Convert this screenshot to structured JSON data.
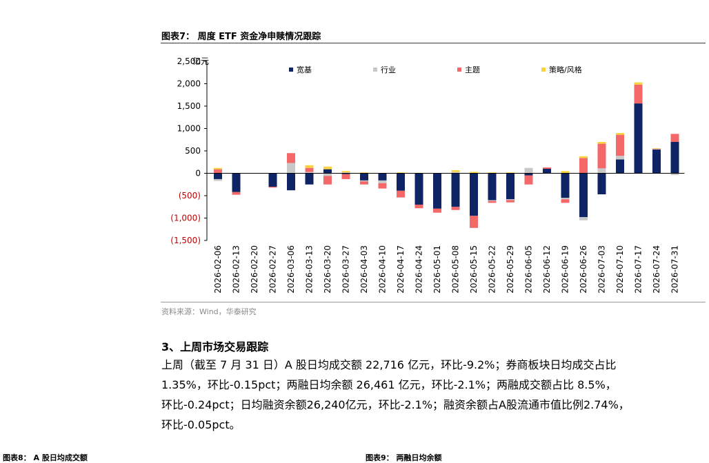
{
  "header": {
    "figure_title": "图表7：  周度 ETF 资金净申赎情况跟踪"
  },
  "source": "资料来源：Wind，华泰研究",
  "section": {
    "title": "3、上周市场交易跟踪",
    "lines": [
      "上周（截至 7 月 31 日）A 股日均成交额 22,716 亿元，环比-9.2%；券商板块日均成交占比",
      "1.35%，环比-0.15pct；两融日均余额 26,461 亿元，环比-2.1%；两融成交额占比 8.5%，",
      "环比-0.24pct；日均融资余额26,240亿元，环比-2.1%；融资余额占A股流通市值比例2.74%，",
      "环比-0.05pct。"
    ]
  },
  "footer": {
    "left": "图表8：  A 股日均成交额",
    "right": "图表9：  两融日均余额"
  },
  "chart_data": {
    "type": "bar",
    "stacked": true,
    "y_unit_label": "亿元",
    "ylim": [
      -1500,
      2500
    ],
    "yticks": [
      2500,
      2000,
      1500,
      1000,
      500,
      0,
      -500,
      -1000,
      -1500
    ],
    "ytick_labels": [
      "2,500",
      "2,000",
      "1,500",
      "1,000",
      "500",
      "0",
      "(500)",
      "(1,000)",
      "(1,500)"
    ],
    "grid": false,
    "legend_position": "top",
    "categories": [
      "2026-02-06",
      "2026-02-13",
      "2026-02-20",
      "2026-02-27",
      "2026-03-06",
      "2026-03-13",
      "2026-03-20",
      "2026-03-27",
      "2026-04-03",
      "2026-04-10",
      "2026-04-17",
      "2026-04-24",
      "2026-05-01",
      "2026-05-08",
      "2026-05-15",
      "2026-05-22",
      "2026-05-29",
      "2026-06-05",
      "2026-06-12",
      "2026-06-19",
      "2026-06-26",
      "2026-07-03",
      "2026-07-10",
      "2026-07-17",
      "2026-07-24",
      "2026-07-31"
    ],
    "series": [
      {
        "name": "宽基",
        "color": "#0e2465",
        "values": [
          -130,
          -420,
          0,
          -300,
          -380,
          -250,
          90,
          -20,
          -160,
          -160,
          -390,
          -700,
          -790,
          -750,
          -950,
          -600,
          -580,
          -50,
          100,
          -550,
          -980,
          -470,
          310,
          1560,
          530,
          700
        ]
      },
      {
        "name": "行业",
        "color": "#c8c8c8",
        "values": [
          -40,
          0,
          0,
          0,
          230,
          30,
          -60,
          20,
          -20,
          -60,
          0,
          0,
          0,
          30,
          0,
          -20,
          -20,
          120,
          0,
          -30,
          -70,
          110,
          80,
          0,
          10,
          -40
        ]
      },
      {
        "name": "主题",
        "color": "#f4686a",
        "values": [
          90,
          -60,
          0,
          -20,
          220,
          90,
          -190,
          -110,
          -70,
          -120,
          -150,
          -80,
          -90,
          -70,
          -270,
          -40,
          -50,
          -200,
          30,
          -80,
          340,
          550,
          470,
          420,
          10,
          180
        ]
      },
      {
        "name": "策略/风格",
        "color": "#f9d33e",
        "values": [
          30,
          0,
          0,
          0,
          0,
          60,
          60,
          30,
          20,
          10,
          20,
          10,
          0,
          40,
          30,
          20,
          20,
          0,
          0,
          50,
          40,
          40,
          40,
          50,
          10,
          0
        ]
      }
    ]
  }
}
